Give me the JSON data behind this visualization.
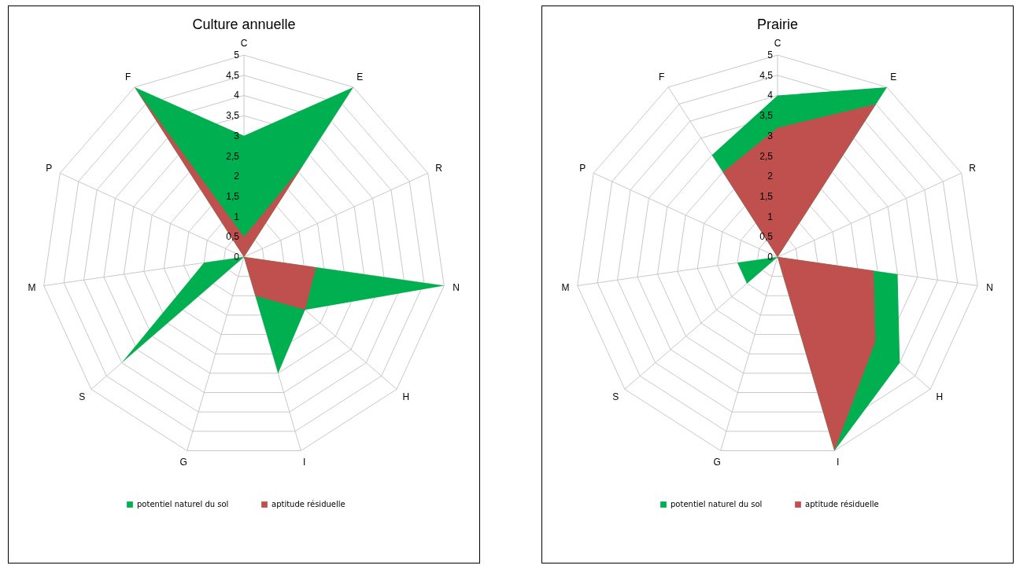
{
  "chart_data": [
    {
      "type": "radar",
      "title": "Culture annuelle",
      "categories": [
        "C",
        "E",
        "R",
        "N",
        "H",
        "I",
        "G",
        "S",
        "M",
        "P",
        "F"
      ],
      "series": [
        {
          "name": "potentiel naturel du sol",
          "color": "#00b050",
          "values": [
            3,
            5,
            0,
            5,
            2,
            3,
            0,
            4,
            1,
            0,
            5
          ]
        },
        {
          "name": "aptitude résiduelle",
          "color": "#c0504d",
          "values": [
            0.5,
            2.7,
            0,
            1.8,
            2,
            1,
            0,
            0,
            1,
            0,
            5
          ]
        }
      ],
      "ylim": [
        0,
        5
      ],
      "yticks": [
        0,
        {
          "value": 0.5,
          "label": "0,5"
        },
        1,
        {
          "value": 1.5,
          "label": "1,5"
        },
        2,
        {
          "value": 2.5,
          "label": "2,5"
        },
        3,
        {
          "value": 3.5,
          "label": "3,5"
        },
        4,
        {
          "value": 4.5,
          "label": "4,5"
        },
        5
      ],
      "grid": true,
      "legend": "bottom"
    },
    {
      "type": "radar",
      "title": "Prairie",
      "categories": [
        "C",
        "E",
        "R",
        "N",
        "H",
        "I",
        "G",
        "S",
        "M",
        "P",
        "F"
      ],
      "series": [
        {
          "name": "potentiel naturel du sol",
          "color": "#00b050",
          "values": [
            4,
            5,
            0,
            3,
            4,
            5,
            0,
            1,
            1,
            0,
            3
          ]
        },
        {
          "name": "aptitude résiduelle",
          "color": "#c0504d",
          "values": [
            3.2,
            4.5,
            0,
            2.4,
            3.2,
            5,
            0,
            1,
            0,
            0,
            2.5
          ]
        }
      ],
      "ylim": [
        0,
        5
      ],
      "yticks": [
        0,
        {
          "value": 0.5,
          "label": "0,5"
        },
        1,
        {
          "value": 1.5,
          "label": "1,5"
        },
        2,
        {
          "value": 2.5,
          "label": "2,5"
        },
        3,
        {
          "value": 3.5,
          "label": "3,5"
        },
        4,
        {
          "value": 4.5,
          "label": "4,5"
        },
        5
      ],
      "grid": true,
      "legend": "bottom"
    }
  ]
}
